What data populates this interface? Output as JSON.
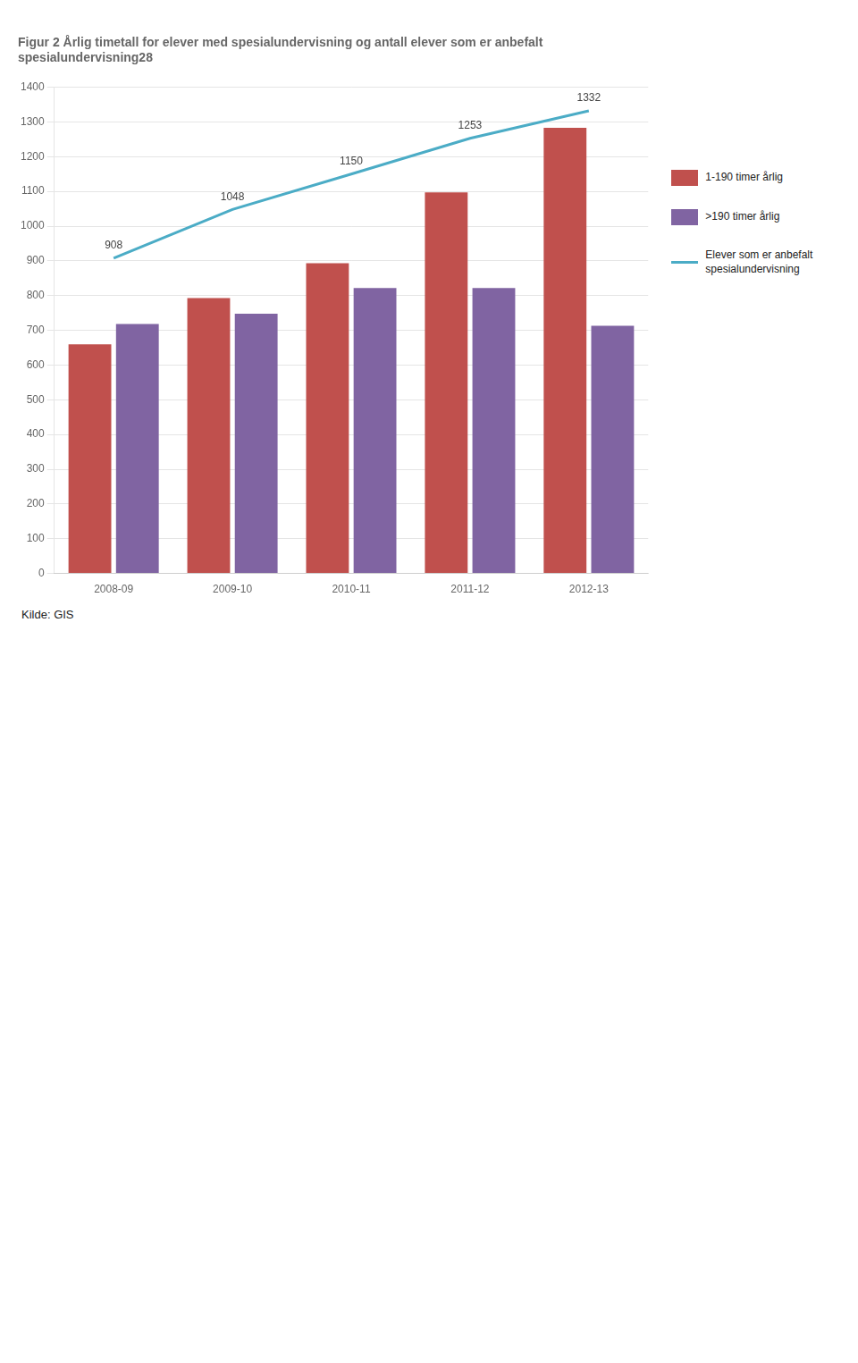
{
  "chart_data": {
    "type": "bar",
    "title": [
      "Figur 2 Årlig timetall for elever med spesialundervisning og antall elever som er anbefalt",
      "spesialundervisning28"
    ],
    "categories": [
      "2008-09",
      "2009-10",
      "2010-11",
      "2011-12",
      "2012-13"
    ],
    "series": [
      {
        "name": "1-190 timer årlig",
        "type": "bar",
        "color": "#C0504D",
        "values": [
          660,
          793,
          893,
          1097,
          1283
        ]
      },
      {
        "name": ">190 timer årlig",
        "type": "bar",
        "color": "#8064A2",
        "values": [
          718,
          748,
          822,
          822,
          713
        ]
      },
      {
        "name": "Elever som er anbefalt\nspesialundervisning",
        "type": "line",
        "color": "#4BACC6",
        "values": [
          908,
          1048,
          1150,
          1253,
          1332
        ],
        "data_labels": true
      }
    ],
    "ylim": [
      0,
      1400
    ],
    "yticks": [
      0,
      100,
      200,
      300,
      400,
      500,
      600,
      700,
      800,
      900,
      1000,
      1100,
      1200,
      1300,
      1400
    ],
    "grid": true,
    "legend": "right",
    "annotations": [
      "Kilde: GIS"
    ]
  }
}
